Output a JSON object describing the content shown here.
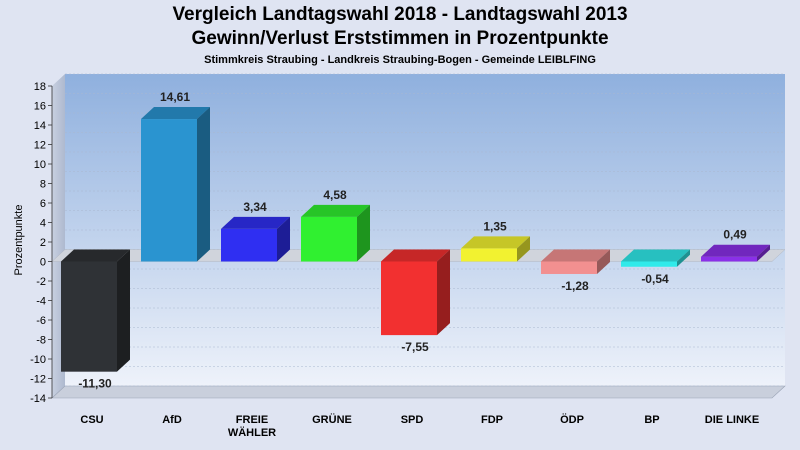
{
  "chart_data": {
    "type": "bar",
    "title": "Vergleich Landtagswahl 2018 - Landtagswahl 2013",
    "subtitle": "Gewinn/Verlust Erststimmen in Prozentpunkte",
    "subtitle2": "Stimmkreis Straubing - Landkreis Straubing-Bogen - Gemeinde LEIBLFING",
    "ylabel": "Prozentpunkte",
    "xlabel": "",
    "ylim": [
      -14,
      18
    ],
    "yticks": [
      18,
      16,
      14,
      12,
      10,
      8,
      6,
      4,
      2,
      0,
      -2,
      -4,
      -6,
      -8,
      -10,
      -12,
      -14
    ],
    "grid": true,
    "categories": [
      [
        "CSU"
      ],
      [
        "AfD"
      ],
      [
        "FREIE",
        "WÄHLER"
      ],
      [
        "GRÜNE"
      ],
      [
        "SPD"
      ],
      [
        "FDP"
      ],
      [
        "ÖDP"
      ],
      [
        "BP"
      ],
      [
        "DIE LINKE"
      ]
    ],
    "values": [
      -11.3,
      14.61,
      3.34,
      4.58,
      -7.55,
      1.35,
      -1.28,
      -0.54,
      0.49
    ],
    "value_labels": [
      "-11,30",
      "14,61",
      "3,34",
      "4,58",
      "-7,55",
      "1,35",
      "-1,28",
      "-0,54",
      "0,49"
    ],
    "colors": [
      "#2f3236",
      "#2a94d0",
      "#2f2ff2",
      "#30f030",
      "#f23030",
      "#f2f230",
      "#f29090",
      "#30eaea",
      "#8a30e8"
    ]
  }
}
